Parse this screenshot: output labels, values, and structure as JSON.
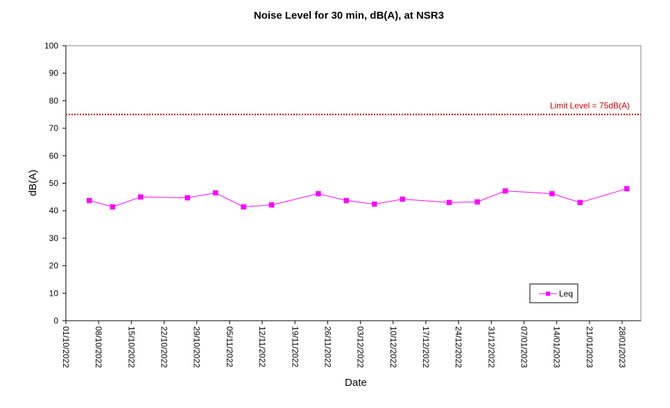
{
  "chart_data": {
    "type": "line",
    "title": "Noise Level for 30 min, dB(A), at NSR3",
    "xlabel": "Date",
    "ylabel": "dB(A)",
    "ylim": [
      0,
      100
    ],
    "yticks": [
      0,
      10,
      20,
      30,
      40,
      50,
      60,
      70,
      80,
      90,
      100
    ],
    "xlim": [
      "2022-10-01",
      "2023-02-01"
    ],
    "xticks": [
      "2022-10-01",
      "2022-10-08",
      "2022-10-15",
      "2022-10-22",
      "2022-10-29",
      "2022-11-05",
      "2022-11-12",
      "2022-11-19",
      "2022-11-26",
      "2022-12-03",
      "2022-12-10",
      "2022-12-17",
      "2022-12-24",
      "2022-12-31",
      "2023-01-07",
      "2023-01-14",
      "2023-01-21",
      "2023-01-28"
    ],
    "xtick_labels": [
      "01/10/2022",
      "08/10/2022",
      "15/10/2022",
      "22/10/2022",
      "29/10/2022",
      "05/11/2022",
      "12/11/2022",
      "19/11/2022",
      "26/11/2022",
      "03/12/2022",
      "10/12/2022",
      "17/12/2022",
      "24/12/2022",
      "31/12/2022",
      "07/01/2023",
      "14/01/2023",
      "21/01/2023",
      "28/01/2023"
    ],
    "grid": false,
    "legend_position": "bottom-right",
    "series": [
      {
        "name": "Leq",
        "color": "#ff00ff",
        "marker": "square",
        "points": [
          {
            "x": "2022-10-06",
            "y": 43.7
          },
          {
            "x": "2022-10-11",
            "y": 41.4
          },
          {
            "x": "2022-10-17",
            "y": 45.0
          },
          {
            "x": "2022-10-27",
            "y": 44.7
          },
          {
            "x": "2022-11-02",
            "y": 46.5
          },
          {
            "x": "2022-11-08",
            "y": 41.4
          },
          {
            "x": "2022-11-14",
            "y": 42.1
          },
          {
            "x": "2022-11-24",
            "y": 46.2
          },
          {
            "x": "2022-11-30",
            "y": 43.7
          },
          {
            "x": "2022-12-06",
            "y": 42.4
          },
          {
            "x": "2022-12-12",
            "y": 44.2
          },
          {
            "x": "2022-12-22",
            "y": 43.0
          },
          {
            "x": "2022-12-28",
            "y": 43.2
          },
          {
            "x": "2023-01-03",
            "y": 47.2
          },
          {
            "x": "2023-01-13",
            "y": 46.2
          },
          {
            "x": "2023-01-19",
            "y": 43.0
          },
          {
            "x": "2023-01-29",
            "y": 48.0
          }
        ]
      }
    ],
    "limit_line": {
      "value": 75,
      "label": "Limit Level  = 75dB(A)",
      "color": "#cc0000",
      "style": "dotted"
    }
  }
}
